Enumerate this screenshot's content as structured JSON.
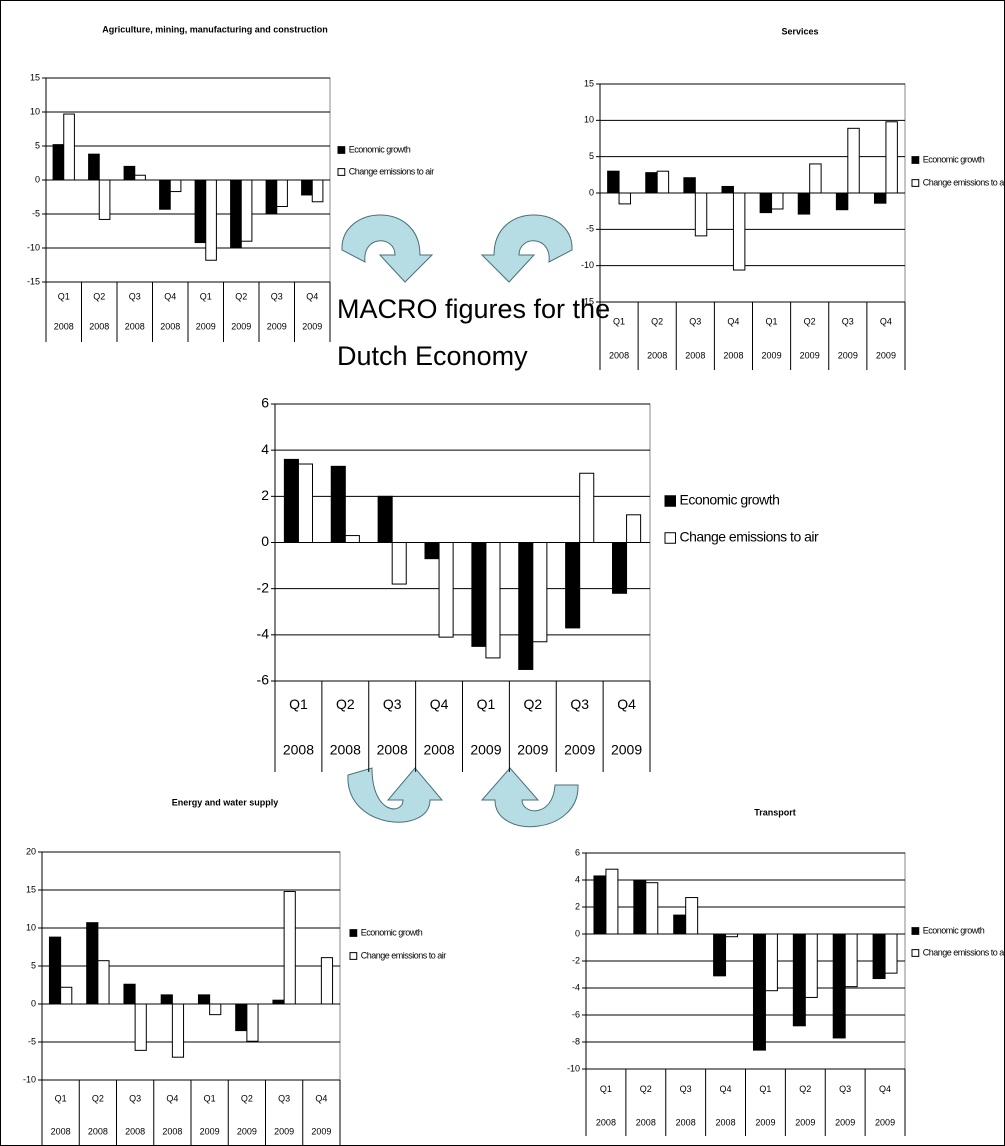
{
  "headline": "MACRO figures for the Dutch Economy",
  "chart_data": [
    {
      "type": "bar",
      "title": "Agriculture, mining, manufacturing and construction",
      "categories": [
        "Q1",
        "Q2",
        "Q3",
        "Q4",
        "Q1",
        "Q2",
        "Q3",
        "Q4"
      ],
      "category_groups": [
        "2008",
        "2008",
        "2008",
        "2008",
        "2009",
        "2009",
        "2009",
        "2009"
      ],
      "series": [
        {
          "name": "Economic growth",
          "color": "#000000",
          "values": [
            5.2,
            3.8,
            2.0,
            -4.3,
            -9.2,
            -10.0,
            -4.9,
            -2.2
          ]
        },
        {
          "name": "Change emissions to air",
          "color": "#ffffff",
          "values": [
            9.7,
            -5.8,
            0.7,
            -1.7,
            -11.8,
            -9.0,
            -3.9,
            -3.2
          ]
        }
      ],
      "ylim": [
        -15,
        15
      ],
      "yticks": [
        -15,
        -10,
        -5,
        0,
        5,
        10,
        15
      ],
      "grid": true,
      "legend": "right"
    },
    {
      "type": "bar",
      "title": "Services",
      "categories": [
        "Q1",
        "Q2",
        "Q3",
        "Q4",
        "Q1",
        "Q2",
        "Q3",
        "Q4"
      ],
      "category_groups": [
        "2008",
        "2008",
        "2008",
        "2008",
        "2009",
        "2009",
        "2009",
        "2009"
      ],
      "series": [
        {
          "name": "Economic growth",
          "color": "#000000",
          "values": [
            3.0,
            2.8,
            2.1,
            0.9,
            -2.7,
            -2.9,
            -2.3,
            -1.4
          ]
        },
        {
          "name": "Change emissions to air",
          "color": "#ffffff",
          "values": [
            -1.5,
            3.0,
            -5.9,
            -10.6,
            -2.2,
            4.0,
            8.9,
            9.8
          ]
        }
      ],
      "ylim": [
        -15,
        15
      ],
      "yticks": [
        -15,
        -10,
        -5,
        0,
        5,
        10,
        15
      ],
      "grid": true,
      "legend": "right"
    },
    {
      "type": "bar",
      "categories": [
        "Q1",
        "Q2",
        "Q3",
        "Q4",
        "Q1",
        "Q2",
        "Q3",
        "Q4"
      ],
      "category_groups": [
        "2008",
        "2008",
        "2008",
        "2008",
        "2009",
        "2009",
        "2009",
        "2009"
      ],
      "series": [
        {
          "name": "Economic growth",
          "color": "#000000",
          "values": [
            3.6,
            3.3,
            2.0,
            -0.7,
            -4.5,
            -5.5,
            -3.7,
            -2.2
          ]
        },
        {
          "name": "Change emissions to air",
          "color": "#ffffff",
          "values": [
            3.4,
            0.3,
            -1.8,
            -4.1,
            -5.0,
            -4.3,
            3.0,
            1.2
          ]
        }
      ],
      "ylim": [
        -6,
        6
      ],
      "yticks": [
        -6,
        -4,
        -2,
        0,
        2,
        4,
        6
      ],
      "grid": true,
      "legend": "right"
    },
    {
      "type": "bar",
      "title": "Energy and water supply",
      "categories": [
        "Q1",
        "Q2",
        "Q3",
        "Q4",
        "Q1",
        "Q2",
        "Q3",
        "Q4"
      ],
      "category_groups": [
        "2008",
        "2008",
        "2008",
        "2008",
        "2009",
        "2009",
        "2009",
        "2009"
      ],
      "series": [
        {
          "name": "Economic growth",
          "color": "#000000",
          "values": [
            8.8,
            10.7,
            2.6,
            1.2,
            1.2,
            -3.5,
            0.5,
            0
          ]
        },
        {
          "name": "Change emissions to air",
          "color": "#ffffff",
          "values": [
            2.2,
            5.7,
            -6.1,
            -7.0,
            -1.4,
            -4.9,
            14.8,
            6.1
          ]
        }
      ],
      "ylim": [
        -10,
        20
      ],
      "yticks": [
        -10,
        -5,
        0,
        5,
        10,
        15,
        20
      ],
      "grid": true,
      "legend": "right"
    },
    {
      "type": "bar",
      "title": "Transport",
      "categories": [
        "Q1",
        "Q2",
        "Q3",
        "Q4",
        "Q1",
        "Q2",
        "Q3",
        "Q4"
      ],
      "category_groups": [
        "2008",
        "2008",
        "2008",
        "2008",
        "2009",
        "2009",
        "2009",
        "2009"
      ],
      "series": [
        {
          "name": "Economic growth",
          "color": "#000000",
          "values": [
            4.3,
            4.0,
            1.4,
            -3.1,
            -8.6,
            -6.8,
            -7.7,
            -3.3
          ]
        },
        {
          "name": "Change emissions to air",
          "color": "#ffffff",
          "values": [
            4.8,
            3.8,
            2.7,
            -0.2,
            -4.2,
            -4.7,
            -3.9,
            -2.9
          ]
        }
      ],
      "ylim": [
        -10,
        6
      ],
      "yticks": [
        -10,
        -8,
        -6,
        -4,
        -2,
        0,
        2,
        4,
        6
      ],
      "grid": true,
      "legend": "right"
    }
  ]
}
